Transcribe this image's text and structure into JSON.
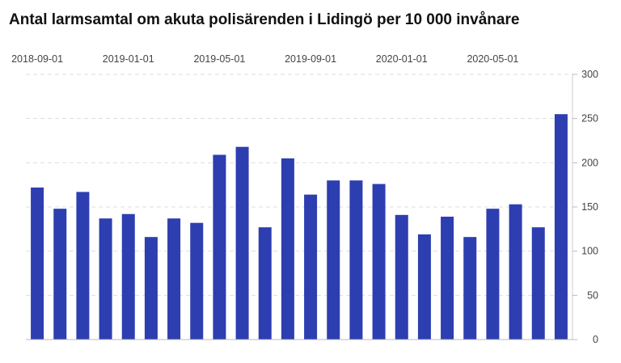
{
  "chart_data": {
    "type": "bar",
    "title": "Antal larmsamtal om akuta polisärenden i Lidingö per 10 000 invånare",
    "x_tick_labels": [
      "2018-09-01",
      "2019-01-01",
      "2019-05-01",
      "2019-09-01",
      "2020-01-01",
      "2020-05-01"
    ],
    "x_tick_positions": [
      0,
      4,
      8,
      12,
      16,
      20
    ],
    "y_ticks": [
      0,
      50,
      100,
      150,
      200,
      250,
      300
    ],
    "ylim": [
      0,
      300
    ],
    "values": [
      172,
      148,
      167,
      137,
      142,
      116,
      137,
      132,
      209,
      218,
      127,
      205,
      164,
      180,
      180,
      176,
      141,
      119,
      139,
      116,
      148,
      153,
      127,
      255
    ],
    "bar_color": "#2d3eb0",
    "grid": true,
    "x_axis_position": "top",
    "y_axis_position": "right"
  }
}
